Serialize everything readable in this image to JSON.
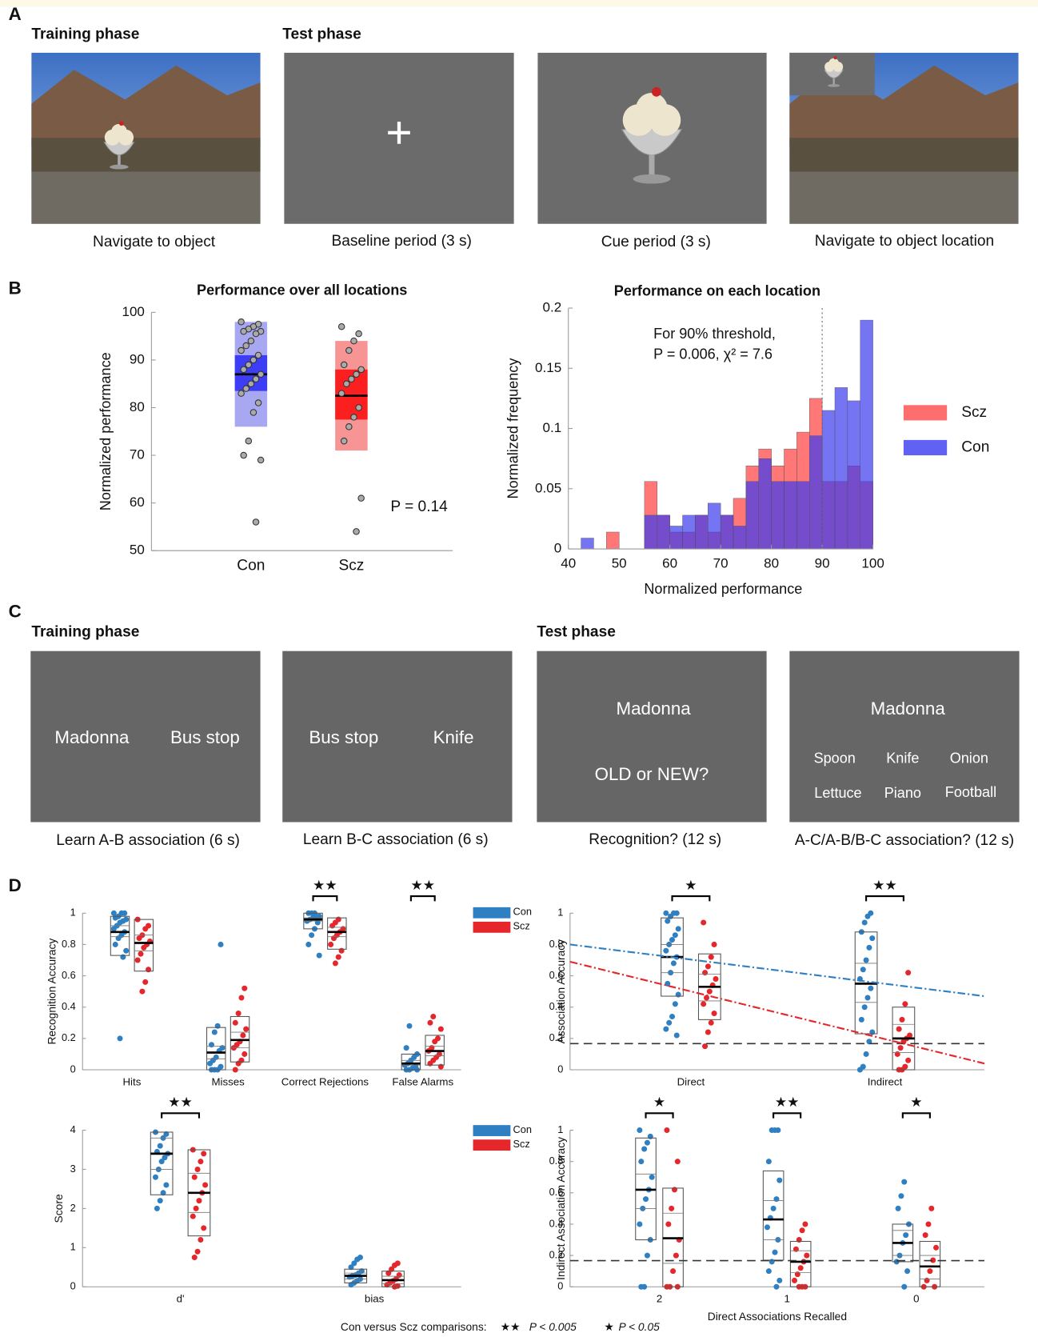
{
  "panel_labels": [
    "A",
    "B",
    "C",
    "D"
  ],
  "panel_a": {
    "headers": [
      "Training phase",
      "Test phase"
    ],
    "captions": [
      "Navigate to object",
      "Baseline period (3 s)",
      "Cue period (3 s)",
      "Navigate to object location"
    ]
  },
  "panel_c": {
    "headers": [
      "Training phase",
      "Test phase"
    ],
    "screens": [
      [
        "Madonna",
        "Bus stop"
      ],
      [
        "Bus stop",
        "Knife"
      ],
      [
        "Madonna",
        "OLD or NEW?"
      ],
      [
        "Madonna",
        "Spoon",
        "Knife",
        "Onion",
        "Lettuce",
        "Piano",
        "Football"
      ]
    ],
    "captions": [
      "Learn A-B association (6 s)",
      "Learn B-C association (6 s)",
      "Recognition? (12 s)",
      "A-C/A-B/B-C association? (12 s)"
    ]
  },
  "footer": [
    "Con versus Scz comparisons:",
    "★★",
    "P < 0.005",
    "★",
    "P < 0.05"
  ],
  "chart_data": [
    {
      "type": "box",
      "title": "Performance over all locations",
      "ylabel": "Normalized performance",
      "categories": [
        "Con",
        "Scz"
      ],
      "ylim": [
        50,
        100
      ],
      "yticks": [
        50,
        60,
        70,
        80,
        90,
        100
      ],
      "annotation": "P = 0.14",
      "groups": [
        {
          "color": "#3d3df5",
          "light_color": "#a7a7f2",
          "mean": 87,
          "box": [
            76,
            98
          ],
          "inner": [
            83.5,
            91
          ],
          "points": [
            98,
            97.5,
            97,
            96.5,
            96,
            96,
            95.5,
            94,
            93,
            92,
            91,
            90,
            89,
            88,
            87,
            86,
            85,
            84,
            83,
            81,
            79,
            73,
            70,
            69,
            56
          ]
        },
        {
          "color": "#fb1f1f",
          "light_color": "#f79494",
          "mean": 82.5,
          "box": [
            71,
            94
          ],
          "inner": [
            77.5,
            88
          ],
          "points": [
            97,
            95.5,
            94,
            92,
            89,
            88,
            87,
            86,
            85,
            83,
            80,
            78,
            76,
            73,
            61,
            54
          ]
        }
      ]
    },
    {
      "type": "histogram",
      "title": "Performance on each location",
      "xlabel": "Normalized performance",
      "ylabel": "Normalized frequency",
      "bins": [
        42.5,
        45,
        47.5,
        50,
        52.5,
        55,
        57.5,
        60,
        62.5,
        65,
        67.5,
        70,
        72.5,
        75,
        77.5,
        80,
        82.5,
        85,
        87.5,
        90,
        92.5,
        95,
        97.5,
        100
      ],
      "xlim": [
        40,
        100
      ],
      "xticks": [
        40,
        50,
        60,
        70,
        80,
        90,
        100
      ],
      "ylim": [
        0,
        0.2
      ],
      "yticks": [
        0,
        0.05,
        0.1,
        0.15,
        0.2
      ],
      "threshold": 90,
      "annotation": [
        "For 90% threshold,",
        "P = 0.006, χ² = 7.6"
      ],
      "legend": "right",
      "series": [
        {
          "name": "Scz",
          "color": "#ff4a4a",
          "values": [
            0,
            0,
            0.014,
            0,
            0,
            0.056,
            0.028,
            0.014,
            0.014,
            0.028,
            0.014,
            0.028,
            0.042,
            0.069,
            0.083,
            0.069,
            0.083,
            0.097,
            0.125,
            0.056,
            0.056,
            0.069,
            0.056
          ]
        },
        {
          "name": "Con",
          "color": "#3a3af0",
          "values": [
            0.009,
            0,
            0,
            0,
            0,
            0.028,
            0.028,
            0.019,
            0.028,
            0.028,
            0.038,
            0.028,
            0.019,
            0.056,
            0.075,
            0.056,
            0.056,
            0.056,
            0.094,
            0.115,
            0.134,
            0.123,
            0.19
          ]
        }
      ]
    },
    {
      "type": "strip",
      "ylabel": "Recognition Accuracy",
      "categories": [
        "Hits",
        "Misses",
        "Correct Rejections",
        "False Alarms"
      ],
      "ylim": [
        0,
        1
      ],
      "yticks": [
        0,
        0.2,
        0.4,
        0.6,
        0.8,
        1
      ],
      "legend": "upper right",
      "significance": [
        null,
        null,
        "★★",
        "★★"
      ],
      "series": [
        {
          "name": "Con",
          "color": "#2f7fc3",
          "means": [
            0.88,
            0.11,
            0.96,
            0.04
          ],
          "boxes": [
            [
              0.73,
              0.98
            ],
            [
              0,
              0.27
            ],
            [
              0.9,
              1
            ],
            [
              0,
              0.1
            ]
          ],
          "inner": [
            [
              0.85,
              0.92
            ],
            [
              0.07,
              0.15
            ],
            [
              0.95,
              0.97
            ],
            [
              0.03,
              0.06
            ]
          ],
          "points": [
            [
              1,
              1,
              1,
              0.98,
              0.97,
              0.96,
              0.95,
              0.94,
              0.92,
              0.9,
              0.88,
              0.86,
              0.84,
              0.8,
              0.76,
              0.72,
              0.2
            ],
            [
              0.8,
              0.28,
              0.24,
              0.16,
              0.14,
              0.12,
              0.08,
              0.06,
              0.04,
              0.02,
              0,
              0,
              0
            ],
            [
              1,
              1,
              1,
              0.98,
              0.98,
              0.97,
              0.96,
              0.95,
              0.94,
              0.9,
              0.86,
              0.8,
              0.73
            ],
            [
              0.28,
              0.14,
              0.1,
              0.08,
              0.06,
              0.04,
              0.03,
              0.02,
              0.01,
              0,
              0,
              0
            ]
          ]
        },
        {
          "name": "Scz",
          "color": "#e5262a",
          "means": [
            0.81,
            0.19,
            0.88,
            0.12
          ],
          "boxes": [
            [
              0.63,
              0.96
            ],
            [
              0.05,
              0.34
            ],
            [
              0.77,
              0.97
            ],
            [
              0.03,
              0.22
            ]
          ],
          "inner": [
            [
              0.76,
              0.86
            ],
            [
              0.14,
              0.24
            ],
            [
              0.85,
              0.91
            ],
            [
              0.09,
              0.15
            ]
          ],
          "points": [
            [
              0.96,
              0.92,
              0.9,
              0.86,
              0.84,
              0.82,
              0.8,
              0.78,
              0.74,
              0.7,
              0.64,
              0.56,
              0.5
            ],
            [
              0.52,
              0.46,
              0.36,
              0.3,
              0.26,
              0.22,
              0.18,
              0.16,
              0.14,
              0.1,
              0.06,
              0.04,
              0
            ],
            [
              0.96,
              0.94,
              0.92,
              0.9,
              0.88,
              0.86,
              0.84,
              0.8,
              0.76,
              0.72,
              0.68
            ],
            [
              0.34,
              0.3,
              0.26,
              0.2,
              0.18,
              0.14,
              0.12,
              0.1,
              0.08,
              0.06,
              0.04,
              0.02
            ]
          ]
        }
      ]
    },
    {
      "type": "strip",
      "ylabel": "Association Accuracy",
      "categories": [
        "Direct",
        "Indirect"
      ],
      "ylim": [
        0,
        1
      ],
      "yticks": [
        0,
        0.2,
        0.4,
        0.6,
        0.8,
        1
      ],
      "chance_level": 0.167,
      "significance": [
        "★",
        "★★"
      ],
      "trend_lines": [
        {
          "color": "#2f7fc3",
          "values": [
            0.8,
            0.47
          ]
        },
        {
          "color": "#e5262a",
          "values": [
            0.69,
            0.04
          ]
        }
      ],
      "series": [
        {
          "color": "#2f7fc3",
          "means": [
            0.72,
            0.55
          ],
          "boxes": [
            [
              0.47,
              0.97
            ],
            [
              0.23,
              0.88
            ]
          ],
          "inner": [
            [
              0.62,
              0.8
            ],
            [
              0.43,
              0.68
            ]
          ],
          "points": [
            [
              1,
              1,
              1,
              0.98,
              0.95,
              0.9,
              0.86,
              0.83,
              0.8,
              0.76,
              0.72,
              0.68,
              0.62,
              0.55,
              0.48,
              0.42,
              0.34,
              0.3,
              0.26,
              0.22
            ],
            [
              1,
              0.98,
              0.94,
              0.88,
              0.84,
              0.78,
              0.7,
              0.64,
              0.58,
              0.52,
              0.46,
              0.4,
              0.32,
              0.24,
              0.18,
              0.1,
              0.02,
              0
            ]
          ]
        },
        {
          "color": "#e5262a",
          "means": [
            0.53,
            0.2
          ],
          "boxes": [
            [
              0.32,
              0.74
            ],
            [
              0,
              0.4
            ]
          ],
          "inner": [
            [
              0.44,
              0.61
            ],
            [
              0.11,
              0.29
            ]
          ],
          "points": [
            [
              0.94,
              0.8,
              0.72,
              0.66,
              0.62,
              0.58,
              0.54,
              0.5,
              0.46,
              0.42,
              0.36,
              0.3,
              0.24,
              0.15
            ],
            [
              0.62,
              0.42,
              0.32,
              0.26,
              0.22,
              0.2,
              0.18,
              0.14,
              0.1,
              0.06,
              0.02,
              0,
              0
            ]
          ]
        }
      ]
    },
    {
      "type": "strip",
      "ylabel": "Score",
      "categories": [
        "d'",
        "bias"
      ],
      "ylim": [
        0,
        4
      ],
      "yticks": [
        0,
        1,
        2,
        3,
        4
      ],
      "legend": "upper right",
      "significance": [
        "★★",
        null
      ],
      "series": [
        {
          "name": "Con",
          "color": "#2f7fc3",
          "means": [
            3.4,
            0.28
          ],
          "boxes": [
            [
              2.35,
              3.95
            ],
            [
              0.1,
              0.45
            ]
          ],
          "inner": [
            [
              3.0,
              3.8
            ],
            [
              0.2,
              0.35
            ]
          ],
          "points": [
            [
              3.95,
              3.9,
              3.8,
              3.6,
              3.45,
              3.4,
              3.3,
              3.2,
              3.0,
              2.8,
              2.6,
              2.4,
              2.2,
              2.0
            ],
            [
              0.75,
              0.7,
              0.6,
              0.5,
              0.4,
              0.35,
              0.3,
              0.28,
              0.25,
              0.2,
              0.15,
              0.1,
              0.05
            ]
          ]
        },
        {
          "name": "Scz",
          "color": "#e5262a",
          "means": [
            2.4,
            0.17
          ],
          "boxes": [
            [
              1.3,
              3.5
            ],
            [
              0,
              0.4
            ]
          ],
          "inner": [
            [
              1.9,
              2.9
            ],
            [
              0.08,
              0.27
            ]
          ],
          "points": [
            [
              3.5,
              3.4,
              3.2,
              3.0,
              2.8,
              2.6,
              2.4,
              2.2,
              2.0,
              1.8,
              1.5,
              1.2,
              0.9,
              0.75
            ],
            [
              0.6,
              0.55,
              0.45,
              0.35,
              0.3,
              0.2,
              0.15,
              0.1,
              0.05,
              0.02,
              0
            ]
          ]
        }
      ]
    },
    {
      "type": "strip",
      "ylabel": "Indirect Association Accuracy",
      "xlabel": "Direct Associations Recalled",
      "categories": [
        "2",
        "1",
        "0"
      ],
      "ylim": [
        0,
        1
      ],
      "yticks": [
        0,
        0.2,
        0.4,
        0.6,
        0.8,
        1
      ],
      "chance_level": 0.167,
      "significance": [
        "★",
        "★★",
        "★"
      ],
      "series": [
        {
          "color": "#2f7fc3",
          "means": [
            0.62,
            0.43,
            0.28
          ],
          "boxes": [
            [
              0.3,
              0.95
            ],
            [
              0.17,
              0.74
            ],
            [
              0.16,
              0.4
            ]
          ],
          "inner": [
            [
              0.5,
              0.72
            ],
            [
              0.3,
              0.55
            ],
            [
              0.2,
              0.36
            ]
          ],
          "points": [
            [
              1,
              0.96,
              0.92,
              0.88,
              0.8,
              0.7,
              0.62,
              0.56,
              0.5,
              0.4,
              0.3,
              0.2,
              0,
              0
            ],
            [
              1,
              1,
              1,
              0.8,
              0.68,
              0.56,
              0.5,
              0.44,
              0.38,
              0.3,
              0.22,
              0.16,
              0.1,
              0.04,
              0
            ],
            [
              0.67,
              0.58,
              0.5,
              0.4,
              0.33,
              0.28,
              0.2,
              0.16,
              0.1,
              0
            ]
          ]
        },
        {
          "color": "#e5262a",
          "means": [
            0.31,
            0.16,
            0.13
          ],
          "boxes": [
            [
              0,
              0.63
            ],
            [
              0,
              0.29
            ],
            [
              0,
              0.29
            ]
          ],
          "inner": [
            [
              0.15,
              0.47
            ],
            [
              0.09,
              0.23
            ],
            [
              0.05,
              0.2
            ]
          ],
          "points": [
            [
              1,
              0.8,
              0.62,
              0.5,
              0.4,
              0.3,
              0.2,
              0.1,
              0,
              0,
              0
            ],
            [
              0.4,
              0.36,
              0.3,
              0.24,
              0.2,
              0.16,
              0.12,
              0.08,
              0.04,
              0,
              0,
              0
            ],
            [
              0.5,
              0.4,
              0.33,
              0.25,
              0.17,
              0.1,
              0.04,
              0,
              0
            ]
          ]
        }
      ]
    }
  ]
}
